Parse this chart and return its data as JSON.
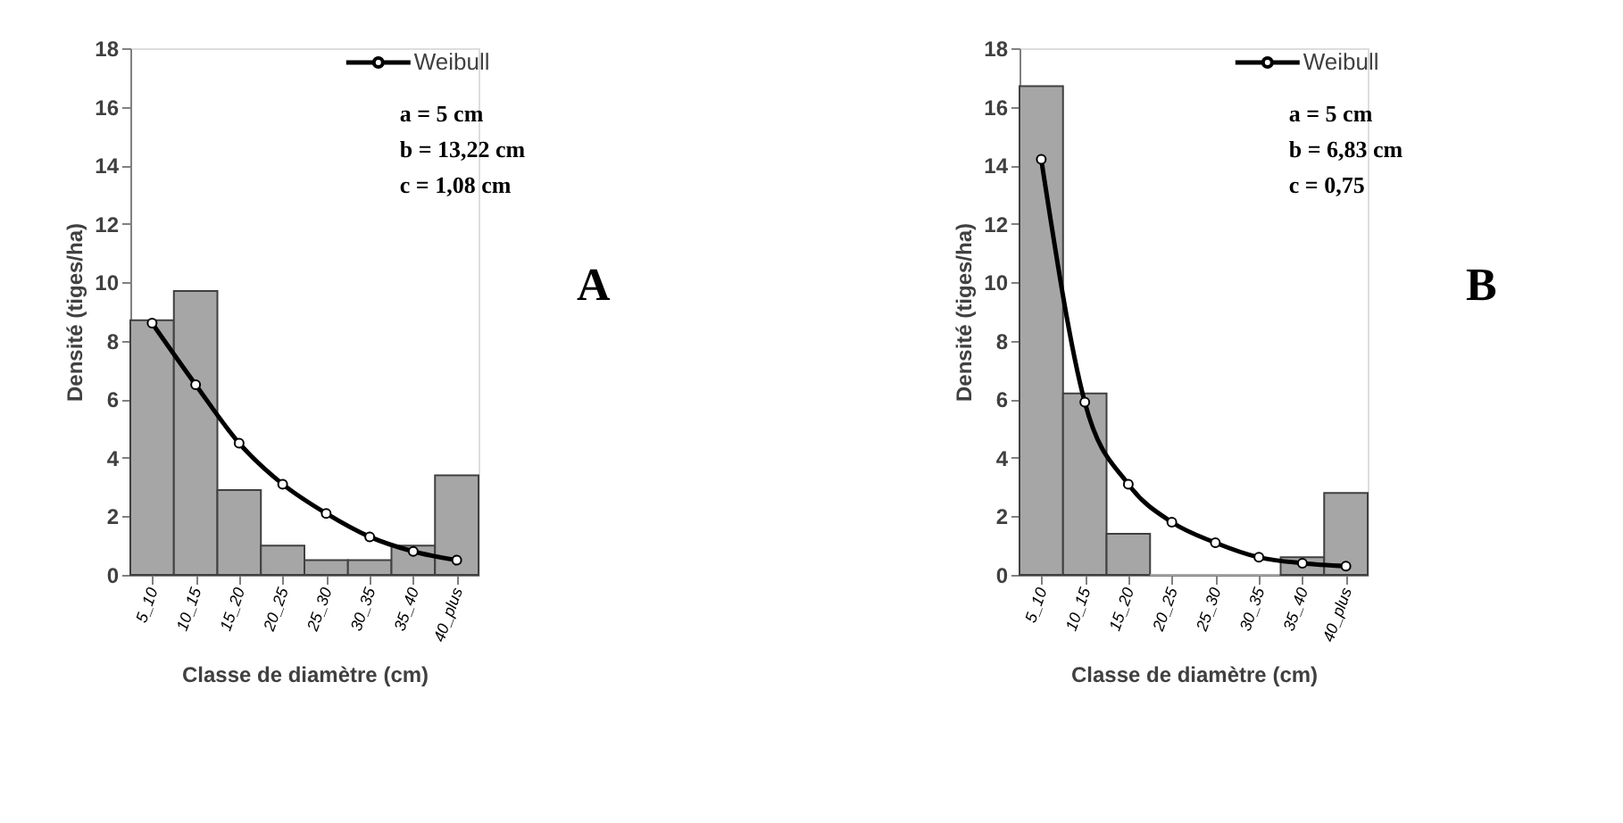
{
  "chart_data": [
    {
      "type": "bar",
      "categories": [
        "5_10",
        "10_15",
        "15_20",
        "20_25",
        "25_30",
        "30_35",
        "35_40",
        "40_plus"
      ],
      "xlabel": "Classe de diamètre (cm)",
      "ylabel": "Densité (tiges/ha)",
      "ylim": [
        0,
        18
      ],
      "yticks": [
        0,
        2,
        4,
        6,
        8,
        10,
        12,
        14,
        16,
        18
      ],
      "grid": false,
      "legend": "top right",
      "series": [
        {
          "type": "bar",
          "color": "#a6a6a6",
          "values": [
            8.7,
            9.7,
            2.9,
            1.0,
            0.5,
            0.5,
            1.0,
            3.4
          ]
        },
        {
          "type": "line",
          "name": "Weibull",
          "color": "#000000",
          "marker": "circle",
          "values": [
            8.6,
            6.5,
            4.5,
            3.1,
            2.1,
            1.3,
            0.8,
            0.5
          ]
        }
      ],
      "annotations": [
        "a = 5 cm",
        "b = 13,22 cm",
        "c = 1,08 cm",
        "A"
      ]
    },
    {
      "type": "bar",
      "categories": [
        "5_10",
        "10_15",
        "15_20",
        "20_25",
        "25_30",
        "30_35",
        "35_40",
        "40_plus"
      ],
      "xlabel": "Classe de diamètre (cm)",
      "ylabel": "Densité (tiges/ha)",
      "ylim": [
        0,
        18
      ],
      "yticks": [
        0,
        2,
        4,
        6,
        8,
        10,
        12,
        14,
        16,
        18
      ],
      "grid": false,
      "legend": "top right",
      "series": [
        {
          "type": "bar",
          "color": "#a6a6a6",
          "values": [
            16.7,
            6.2,
            1.4,
            0,
            0,
            0,
            0.6,
            2.8
          ]
        },
        {
          "type": "line",
          "name": "Weibull",
          "color": "#000000",
          "marker": "circle",
          "values": [
            14.2,
            5.9,
            3.1,
            1.8,
            1.1,
            0.6,
            0.4,
            0.3
          ]
        }
      ],
      "annotations": [
        "a = 5 cm",
        "b = 6,83 cm",
        "c = 0,75",
        "B"
      ]
    }
  ]
}
